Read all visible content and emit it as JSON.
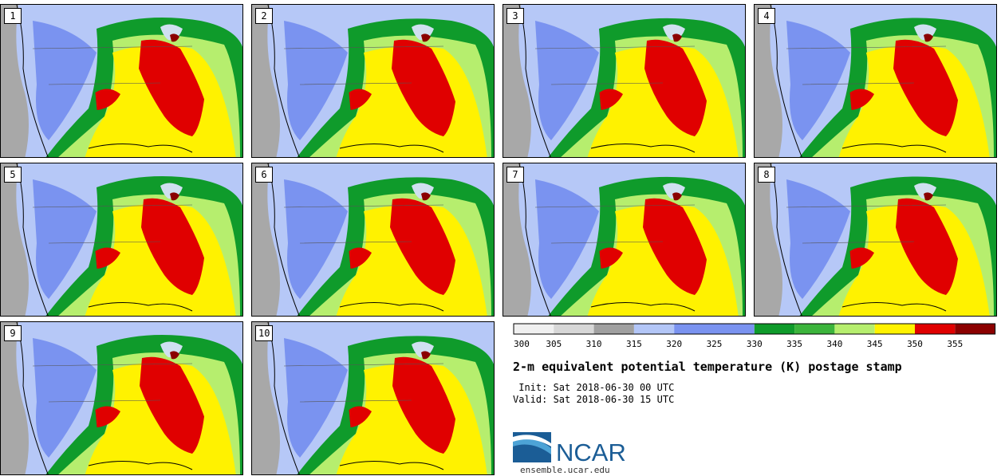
{
  "panels": [
    {
      "label": "1"
    },
    {
      "label": "2"
    },
    {
      "label": "3"
    },
    {
      "label": "4"
    },
    {
      "label": "5"
    },
    {
      "label": "6"
    },
    {
      "label": "7"
    },
    {
      "label": "8"
    },
    {
      "label": "9"
    },
    {
      "label": "10"
    }
  ],
  "colorbar": {
    "ticks": [
      "300",
      "305",
      "310",
      "315",
      "320",
      "325",
      "330",
      "335",
      "340",
      "345",
      "350",
      "355"
    ],
    "colors": [
      "#f0f0f0",
      "#d7d7d7",
      "#a0a0a0",
      "#b3c6f7",
      "#7a93f0",
      "#7a93f0",
      "#0f9b2b",
      "#3cb43c",
      "#b6ee6e",
      "#fff200",
      "#e00000",
      "#8b0000"
    ]
  },
  "title": "2-m equivalent potential temperature (K) postage stamp",
  "init_text": " Init: Sat 2018-06-30 00 UTC",
  "valid_text": "Valid: Sat 2018-06-30 15 UTC",
  "logo": {
    "text": "NCAR",
    "url": "ensemble.ucar.edu",
    "brand_color": "#1b5d96",
    "swoosh_color": "#4da3d6"
  },
  "map_colors": {
    "ocean_west": "#a8a8a8",
    "cool_blue": "#b6c8f7",
    "mid_blue": "#7a93f0",
    "dark_green": "#0f9b2b",
    "green": "#3cb43c",
    "light_green": "#b6ee6e",
    "yellow": "#fff200",
    "red": "#e00000",
    "dark_red": "#8b0000",
    "lake": "#d0e0f0"
  }
}
